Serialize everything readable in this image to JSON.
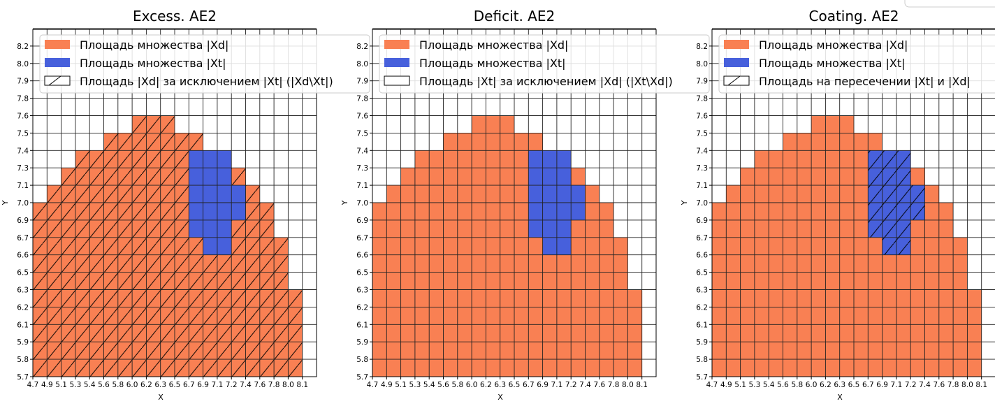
{
  "chart_data": [
    {
      "type": "heatmap",
      "title": "Excess. AE2",
      "xlabel": "X",
      "ylabel": "Y",
      "hatch_region": "Xd_minus_Xt",
      "legend": [
        "Площадь множества |Xd|",
        "Площадь множества  |Xt|",
        "Площадь |Xd| за исключением |Xt| (|Xd\\Xt|)"
      ],
      "legend_placement": "top-left"
    },
    {
      "type": "heatmap",
      "title": "Deficit. AE2",
      "xlabel": "X",
      "ylabel": "Y",
      "hatch_region": "Xt_minus_Xd",
      "legend": [
        "Площадь множества |Xd|",
        "Площадь множества  |Xt|",
        "Площадь |Xt| за исключением |Xd| (|Xt\\Xd|)"
      ],
      "legend_placement": "top-left"
    },
    {
      "type": "heatmap",
      "title": "Coating. AE2",
      "xlabel": "X",
      "ylabel": "Y",
      "hatch_region": "Xt_and_Xd",
      "legend": [
        "Площадь множества |Xd|",
        "Площадь множества  |Xt|",
        "Площадь на пересечении |Xt| и |Xd|"
      ],
      "legend_placement": "top-left"
    }
  ],
  "shared": {
    "x_ticks": [
      "4.7",
      "4.9",
      "5.1",
      "5.3",
      "5.4",
      "5.6",
      "5.8",
      "6.0",
      "6.2",
      "6.3",
      "6.5",
      "6.7",
      "6.9",
      "7.1",
      "7.2",
      "7.4",
      "7.6",
      "7.8",
      "8.0",
      "8.1"
    ],
    "y_ticks": [
      "5.7",
      "5.8",
      "5.9",
      "6.1",
      "6.2",
      "6.3",
      "6.5",
      "6.6",
      "6.7",
      "6.9",
      "7.0",
      "7.1",
      "7.3",
      "7.4",
      "7.5",
      "7.6",
      "7.8",
      "7.9",
      "8.0",
      "8.2"
    ],
    "xd_columns": [
      {
        "x": "4.7",
        "y_from": "5.7",
        "y_to": "7.0"
      },
      {
        "x": "4.9",
        "y_from": "5.7",
        "y_to": "7.1"
      },
      {
        "x": "5.1",
        "y_from": "5.7",
        "y_to": "7.3"
      },
      {
        "x": "5.3",
        "y_from": "5.7",
        "y_to": "7.4"
      },
      {
        "x": "5.4",
        "y_from": "5.7",
        "y_to": "7.4"
      },
      {
        "x": "5.6",
        "y_from": "5.7",
        "y_to": "7.5"
      },
      {
        "x": "5.8",
        "y_from": "5.7",
        "y_to": "7.5"
      },
      {
        "x": "6.0",
        "y_from": "5.7",
        "y_to": "7.6"
      },
      {
        "x": "6.2",
        "y_from": "5.7",
        "y_to": "7.6"
      },
      {
        "x": "6.3",
        "y_from": "5.7",
        "y_to": "7.6"
      },
      {
        "x": "6.5",
        "y_from": "5.7",
        "y_to": "7.5"
      },
      {
        "x": "6.7",
        "y_from": "5.7",
        "y_to": "7.5"
      },
      {
        "x": "6.9",
        "y_from": "5.7",
        "y_to": "7.4"
      },
      {
        "x": "7.1",
        "y_from": "5.7",
        "y_to": "7.4"
      },
      {
        "x": "7.2",
        "y_from": "5.7",
        "y_to": "7.3"
      },
      {
        "x": "7.4",
        "y_from": "5.7",
        "y_to": "7.1"
      },
      {
        "x": "7.6",
        "y_from": "5.7",
        "y_to": "7.0"
      },
      {
        "x": "7.8",
        "y_from": "5.7",
        "y_to": "6.7"
      },
      {
        "x": "8.0",
        "y_from": "5.7",
        "y_to": "6.3"
      }
    ],
    "xt_columns": [
      {
        "x": "6.7",
        "y_from": "6.7",
        "y_to": "7.4"
      },
      {
        "x": "6.9",
        "y_from": "6.6",
        "y_to": "7.4"
      },
      {
        "x": "7.1",
        "y_from": "6.6",
        "y_to": "7.4"
      },
      {
        "x": "7.2",
        "y_from": "6.9",
        "y_to": "7.1"
      }
    ],
    "colors": {
      "xd": "#f98053",
      "xt": "#4760dc",
      "grid": "#222222"
    }
  }
}
